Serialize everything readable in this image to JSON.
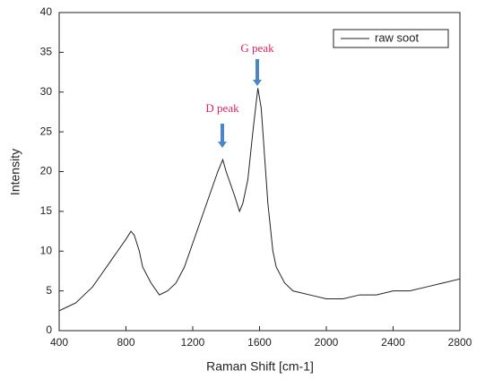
{
  "chart_data": {
    "type": "line",
    "x_label": "Raman Shift [cm-1]",
    "y_label": "Intensity",
    "x": [
      400,
      450,
      500,
      550,
      600,
      650,
      700,
      750,
      800,
      830,
      850,
      880,
      900,
      950,
      1000,
      1050,
      1100,
      1150,
      1200,
      1250,
      1300,
      1350,
      1380,
      1400,
      1450,
      1480,
      1500,
      1530,
      1560,
      1590,
      1610,
      1630,
      1650,
      1680,
      1700,
      1750,
      1800,
      1900,
      2000,
      2100,
      2200,
      2300,
      2400,
      2500,
      2600,
      2700,
      2800
    ],
    "series": [
      {
        "name": "raw soot",
        "color": "#222222",
        "values": [
          2.5,
          3,
          3.5,
          4.5,
          5.5,
          7,
          8.5,
          10,
          11.5,
          12.5,
          12,
          10,
          8,
          6,
          4.5,
          5,
          6,
          8,
          11,
          14,
          17,
          20,
          21.5,
          20,
          17,
          15,
          16,
          19,
          25,
          30.5,
          28,
          22,
          16,
          10,
          8,
          6,
          5,
          4.5,
          4,
          4,
          4.5,
          4.5,
          5,
          5,
          5.5,
          6,
          6.5
        ]
      }
    ],
    "xlim": [
      400,
      2800
    ],
    "xticks": [
      400,
      800,
      1200,
      1600,
      2000,
      2400,
      2800
    ],
    "ylim": [
      0,
      40
    ],
    "yticks": [
      0,
      5,
      10,
      15,
      20,
      25,
      30,
      35,
      40
    ],
    "legend": "upper right",
    "annotations": [
      {
        "text": "D peak",
        "color": "#e0245e"
      },
      {
        "text": "G peak",
        "color": "#e0245e"
      }
    ],
    "arrow_color": "#4a86c8"
  }
}
